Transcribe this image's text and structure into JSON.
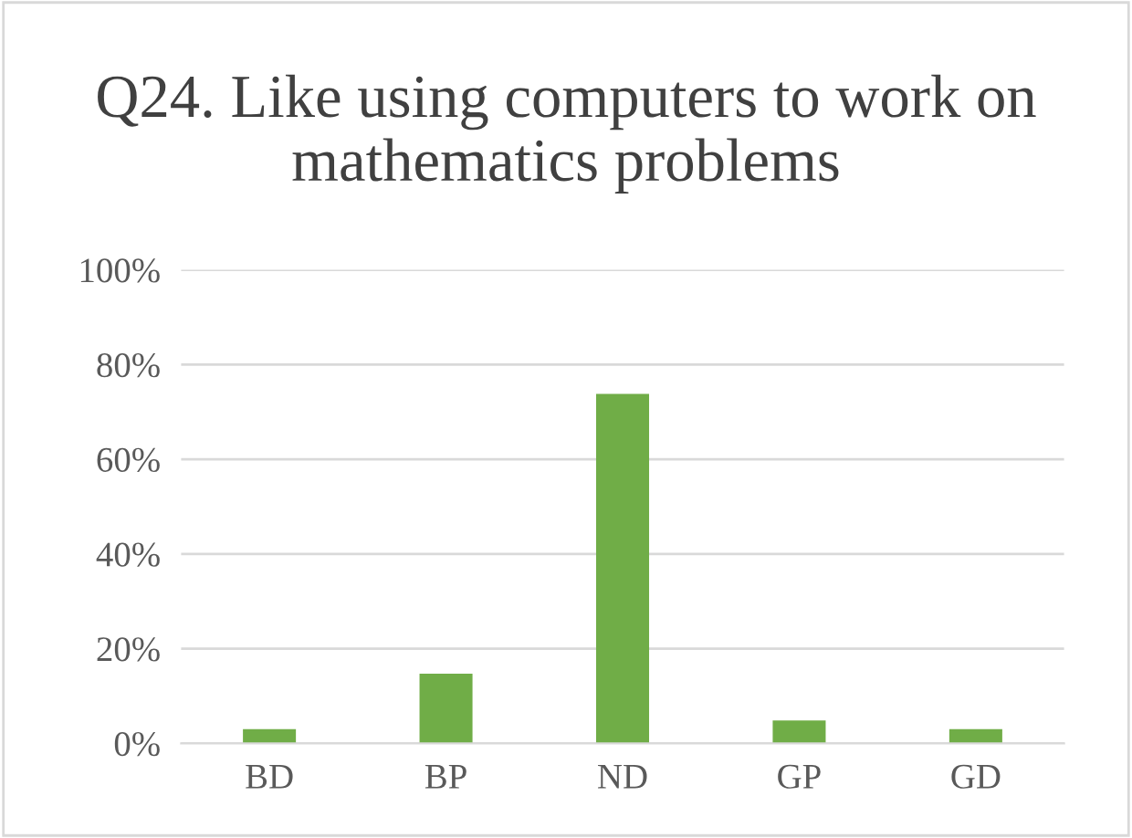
{
  "chart_data": {
    "type": "bar",
    "title": "Q24. Like using computers to work on mathematics problems",
    "categories": [
      "BD",
      "BP",
      "ND",
      "GP",
      "GD"
    ],
    "values": [
      3,
      14.7,
      73.8,
      4.8,
      3
    ],
    "color": "#70ad47",
    "ylim": [
      0,
      100
    ],
    "yticks": [
      {
        "value": 0,
        "label": "0%"
      },
      {
        "value": 20,
        "label": "20%"
      },
      {
        "value": 40,
        "label": "40%"
      },
      {
        "value": 60,
        "label": "60%"
      },
      {
        "value": 80,
        "label": "80%"
      },
      {
        "value": 100,
        "label": "100%"
      }
    ],
    "grid": "y",
    "legend": false
  }
}
